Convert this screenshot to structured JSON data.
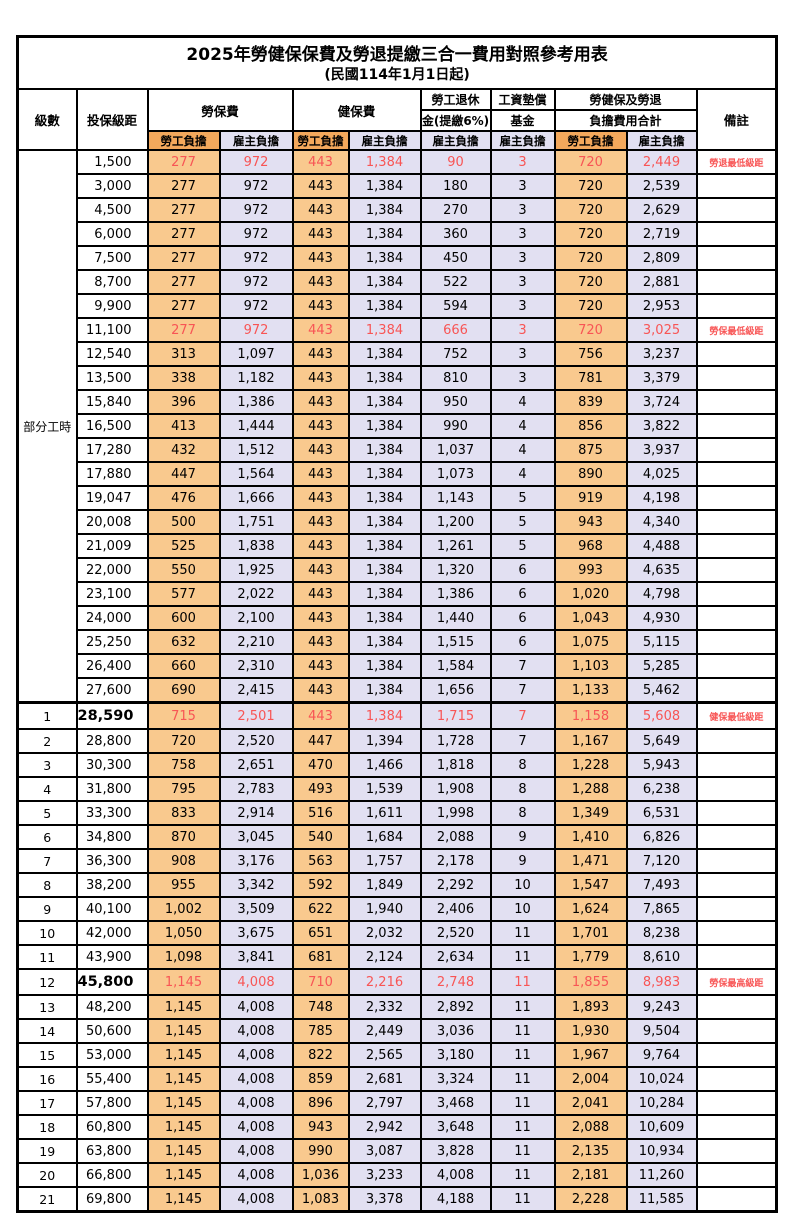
{
  "title": "2025年勞健保保費及勞退提繳三合一費用對照參考用表",
  "subtitle": "(民國114年1月1日起)",
  "colors": {
    "employee_bg": "#F9C98E",
    "employee_header_bg": "#F3A85C",
    "employer_bg": "#E2E0F2",
    "highlight_red": "#F85555",
    "border": "#000000"
  },
  "header": {
    "level": "級數",
    "bracket": "投保級距",
    "labor_ins": "勞保費",
    "health_ins": "健保費",
    "pension_line1": "勞工退休",
    "pension_line2": "金(提繳6%)",
    "wage_fund_line1": "工資墊償",
    "wage_fund_line2": "基金",
    "total_line1": "勞健保及勞退",
    "total_line2": "負擔費用合計",
    "remark": "備註",
    "employee": "勞工負擔",
    "employer": "雇主負擔"
  },
  "part_time": {
    "label": "部分工時",
    "span": 23
  },
  "rows": [
    {
      "lv": "",
      "b": "1,500",
      "v": [
        "277",
        "972",
        "443",
        "1,384",
        "90",
        "3",
        "720",
        "2,449"
      ],
      "r": "勞退最低級距",
      "red": 1,
      "big": 0
    },
    {
      "lv": "",
      "b": "3,000",
      "v": [
        "277",
        "972",
        "443",
        "1,384",
        "180",
        "3",
        "720",
        "2,539"
      ],
      "r": "",
      "red": 0,
      "big": 0
    },
    {
      "lv": "",
      "b": "4,500",
      "v": [
        "277",
        "972",
        "443",
        "1,384",
        "270",
        "3",
        "720",
        "2,629"
      ],
      "r": "",
      "red": 0,
      "big": 0
    },
    {
      "lv": "",
      "b": "6,000",
      "v": [
        "277",
        "972",
        "443",
        "1,384",
        "360",
        "3",
        "720",
        "2,719"
      ],
      "r": "",
      "red": 0,
      "big": 0
    },
    {
      "lv": "",
      "b": "7,500",
      "v": [
        "277",
        "972",
        "443",
        "1,384",
        "450",
        "3",
        "720",
        "2,809"
      ],
      "r": "",
      "red": 0,
      "big": 0
    },
    {
      "lv": "",
      "b": "8,700",
      "v": [
        "277",
        "972",
        "443",
        "1,384",
        "522",
        "3",
        "720",
        "2,881"
      ],
      "r": "",
      "red": 0,
      "big": 0
    },
    {
      "lv": "",
      "b": "9,900",
      "v": [
        "277",
        "972",
        "443",
        "1,384",
        "594",
        "3",
        "720",
        "2,953"
      ],
      "r": "",
      "red": 0,
      "big": 0
    },
    {
      "lv": "",
      "b": "11,100",
      "v": [
        "277",
        "972",
        "443",
        "1,384",
        "666",
        "3",
        "720",
        "3,025"
      ],
      "r": "勞保最低級距",
      "red": 1,
      "big": 0
    },
    {
      "lv": "",
      "b": "12,540",
      "v": [
        "313",
        "1,097",
        "443",
        "1,384",
        "752",
        "3",
        "756",
        "3,237"
      ],
      "r": "",
      "red": 0,
      "big": 0
    },
    {
      "lv": "",
      "b": "13,500",
      "v": [
        "338",
        "1,182",
        "443",
        "1,384",
        "810",
        "3",
        "781",
        "3,379"
      ],
      "r": "",
      "red": 0,
      "big": 0
    },
    {
      "lv": "",
      "b": "15,840",
      "v": [
        "396",
        "1,386",
        "443",
        "1,384",
        "950",
        "4",
        "839",
        "3,724"
      ],
      "r": "",
      "red": 0,
      "big": 0
    },
    {
      "lv": "",
      "b": "16,500",
      "v": [
        "413",
        "1,444",
        "443",
        "1,384",
        "990",
        "4",
        "856",
        "3,822"
      ],
      "r": "",
      "red": 0,
      "big": 0
    },
    {
      "lv": "",
      "b": "17,280",
      "v": [
        "432",
        "1,512",
        "443",
        "1,384",
        "1,037",
        "4",
        "875",
        "3,937"
      ],
      "r": "",
      "red": 0,
      "big": 0
    },
    {
      "lv": "",
      "b": "17,880",
      "v": [
        "447",
        "1,564",
        "443",
        "1,384",
        "1,073",
        "4",
        "890",
        "4,025"
      ],
      "r": "",
      "red": 0,
      "big": 0
    },
    {
      "lv": "",
      "b": "19,047",
      "v": [
        "476",
        "1,666",
        "443",
        "1,384",
        "1,143",
        "5",
        "919",
        "4,198"
      ],
      "r": "",
      "red": 0,
      "big": 0
    },
    {
      "lv": "",
      "b": "20,008",
      "v": [
        "500",
        "1,751",
        "443",
        "1,384",
        "1,200",
        "5",
        "943",
        "4,340"
      ],
      "r": "",
      "red": 0,
      "big": 0
    },
    {
      "lv": "",
      "b": "21,009",
      "v": [
        "525",
        "1,838",
        "443",
        "1,384",
        "1,261",
        "5",
        "968",
        "4,488"
      ],
      "r": "",
      "red": 0,
      "big": 0
    },
    {
      "lv": "",
      "b": "22,000",
      "v": [
        "550",
        "1,925",
        "443",
        "1,384",
        "1,320",
        "6",
        "993",
        "4,635"
      ],
      "r": "",
      "red": 0,
      "big": 0
    },
    {
      "lv": "",
      "b": "23,100",
      "v": [
        "577",
        "2,022",
        "443",
        "1,384",
        "1,386",
        "6",
        "1,020",
        "4,798"
      ],
      "r": "",
      "red": 0,
      "big": 0
    },
    {
      "lv": "",
      "b": "24,000",
      "v": [
        "600",
        "2,100",
        "443",
        "1,384",
        "1,440",
        "6",
        "1,043",
        "4,930"
      ],
      "r": "",
      "red": 0,
      "big": 0
    },
    {
      "lv": "",
      "b": "25,250",
      "v": [
        "632",
        "2,210",
        "443",
        "1,384",
        "1,515",
        "6",
        "1,075",
        "5,115"
      ],
      "r": "",
      "red": 0,
      "big": 0
    },
    {
      "lv": "",
      "b": "26,400",
      "v": [
        "660",
        "2,310",
        "443",
        "1,384",
        "1,584",
        "7",
        "1,103",
        "5,285"
      ],
      "r": "",
      "red": 0,
      "big": 0
    },
    {
      "lv": "",
      "b": "27,600",
      "v": [
        "690",
        "2,415",
        "443",
        "1,384",
        "1,656",
        "7",
        "1,133",
        "5,462"
      ],
      "r": "",
      "red": 0,
      "big": 0
    },
    {
      "lv": "1",
      "b": "28,590",
      "v": [
        "715",
        "2,501",
        "443",
        "1,384",
        "1,715",
        "7",
        "1,158",
        "5,608"
      ],
      "r": "健保最低級距",
      "red": 1,
      "big": 1
    },
    {
      "lv": "2",
      "b": "28,800",
      "v": [
        "720",
        "2,520",
        "447",
        "1,394",
        "1,728",
        "7",
        "1,167",
        "5,649"
      ],
      "r": "",
      "red": 0,
      "big": 0
    },
    {
      "lv": "3",
      "b": "30,300",
      "v": [
        "758",
        "2,651",
        "470",
        "1,466",
        "1,818",
        "8",
        "1,228",
        "5,943"
      ],
      "r": "",
      "red": 0,
      "big": 0
    },
    {
      "lv": "4",
      "b": "31,800",
      "v": [
        "795",
        "2,783",
        "493",
        "1,539",
        "1,908",
        "8",
        "1,288",
        "6,238"
      ],
      "r": "",
      "red": 0,
      "big": 0
    },
    {
      "lv": "5",
      "b": "33,300",
      "v": [
        "833",
        "2,914",
        "516",
        "1,611",
        "1,998",
        "8",
        "1,349",
        "6,531"
      ],
      "r": "",
      "red": 0,
      "big": 0
    },
    {
      "lv": "6",
      "b": "34,800",
      "v": [
        "870",
        "3,045",
        "540",
        "1,684",
        "2,088",
        "9",
        "1,410",
        "6,826"
      ],
      "r": "",
      "red": 0,
      "big": 0
    },
    {
      "lv": "7",
      "b": "36,300",
      "v": [
        "908",
        "3,176",
        "563",
        "1,757",
        "2,178",
        "9",
        "1,471",
        "7,120"
      ],
      "r": "",
      "red": 0,
      "big": 0
    },
    {
      "lv": "8",
      "b": "38,200",
      "v": [
        "955",
        "3,342",
        "592",
        "1,849",
        "2,292",
        "10",
        "1,547",
        "7,493"
      ],
      "r": "",
      "red": 0,
      "big": 0
    },
    {
      "lv": "9",
      "b": "40,100",
      "v": [
        "1,002",
        "3,509",
        "622",
        "1,940",
        "2,406",
        "10",
        "1,624",
        "7,865"
      ],
      "r": "",
      "red": 0,
      "big": 0
    },
    {
      "lv": "10",
      "b": "42,000",
      "v": [
        "1,050",
        "3,675",
        "651",
        "2,032",
        "2,520",
        "11",
        "1,701",
        "8,238"
      ],
      "r": "",
      "red": 0,
      "big": 0
    },
    {
      "lv": "11",
      "b": "43,900",
      "v": [
        "1,098",
        "3,841",
        "681",
        "2,124",
        "2,634",
        "11",
        "1,779",
        "8,610"
      ],
      "r": "",
      "red": 0,
      "big": 0
    },
    {
      "lv": "12",
      "b": "45,800",
      "v": [
        "1,145",
        "4,008",
        "710",
        "2,216",
        "2,748",
        "11",
        "1,855",
        "8,983"
      ],
      "r": "勞保最高級距",
      "red": 1,
      "big": 1
    },
    {
      "lv": "13",
      "b": "48,200",
      "v": [
        "1,145",
        "4,008",
        "748",
        "2,332",
        "2,892",
        "11",
        "1,893",
        "9,243"
      ],
      "r": "",
      "red": 0,
      "big": 0
    },
    {
      "lv": "14",
      "b": "50,600",
      "v": [
        "1,145",
        "4,008",
        "785",
        "2,449",
        "3,036",
        "11",
        "1,930",
        "9,504"
      ],
      "r": "",
      "red": 0,
      "big": 0
    },
    {
      "lv": "15",
      "b": "53,000",
      "v": [
        "1,145",
        "4,008",
        "822",
        "2,565",
        "3,180",
        "11",
        "1,967",
        "9,764"
      ],
      "r": "",
      "red": 0,
      "big": 0
    },
    {
      "lv": "16",
      "b": "55,400",
      "v": [
        "1,145",
        "4,008",
        "859",
        "2,681",
        "3,324",
        "11",
        "2,004",
        "10,024"
      ],
      "r": "",
      "red": 0,
      "big": 0
    },
    {
      "lv": "17",
      "b": "57,800",
      "v": [
        "1,145",
        "4,008",
        "896",
        "2,797",
        "3,468",
        "11",
        "2,041",
        "10,284"
      ],
      "r": "",
      "red": 0,
      "big": 0
    },
    {
      "lv": "18",
      "b": "60,800",
      "v": [
        "1,145",
        "4,008",
        "943",
        "2,942",
        "3,648",
        "11",
        "2,088",
        "10,609"
      ],
      "r": "",
      "red": 0,
      "big": 0
    },
    {
      "lv": "19",
      "b": "63,800",
      "v": [
        "1,145",
        "4,008",
        "990",
        "3,087",
        "3,828",
        "11",
        "2,135",
        "10,934"
      ],
      "r": "",
      "red": 0,
      "big": 0
    },
    {
      "lv": "20",
      "b": "66,800",
      "v": [
        "1,145",
        "4,008",
        "1,036",
        "3,233",
        "4,008",
        "11",
        "2,181",
        "11,260"
      ],
      "r": "",
      "red": 0,
      "big": 0
    },
    {
      "lv": "21",
      "b": "69,800",
      "v": [
        "1,145",
        "4,008",
        "1,083",
        "3,378",
        "4,188",
        "11",
        "2,228",
        "11,585"
      ],
      "r": "",
      "red": 0,
      "big": 0
    }
  ]
}
